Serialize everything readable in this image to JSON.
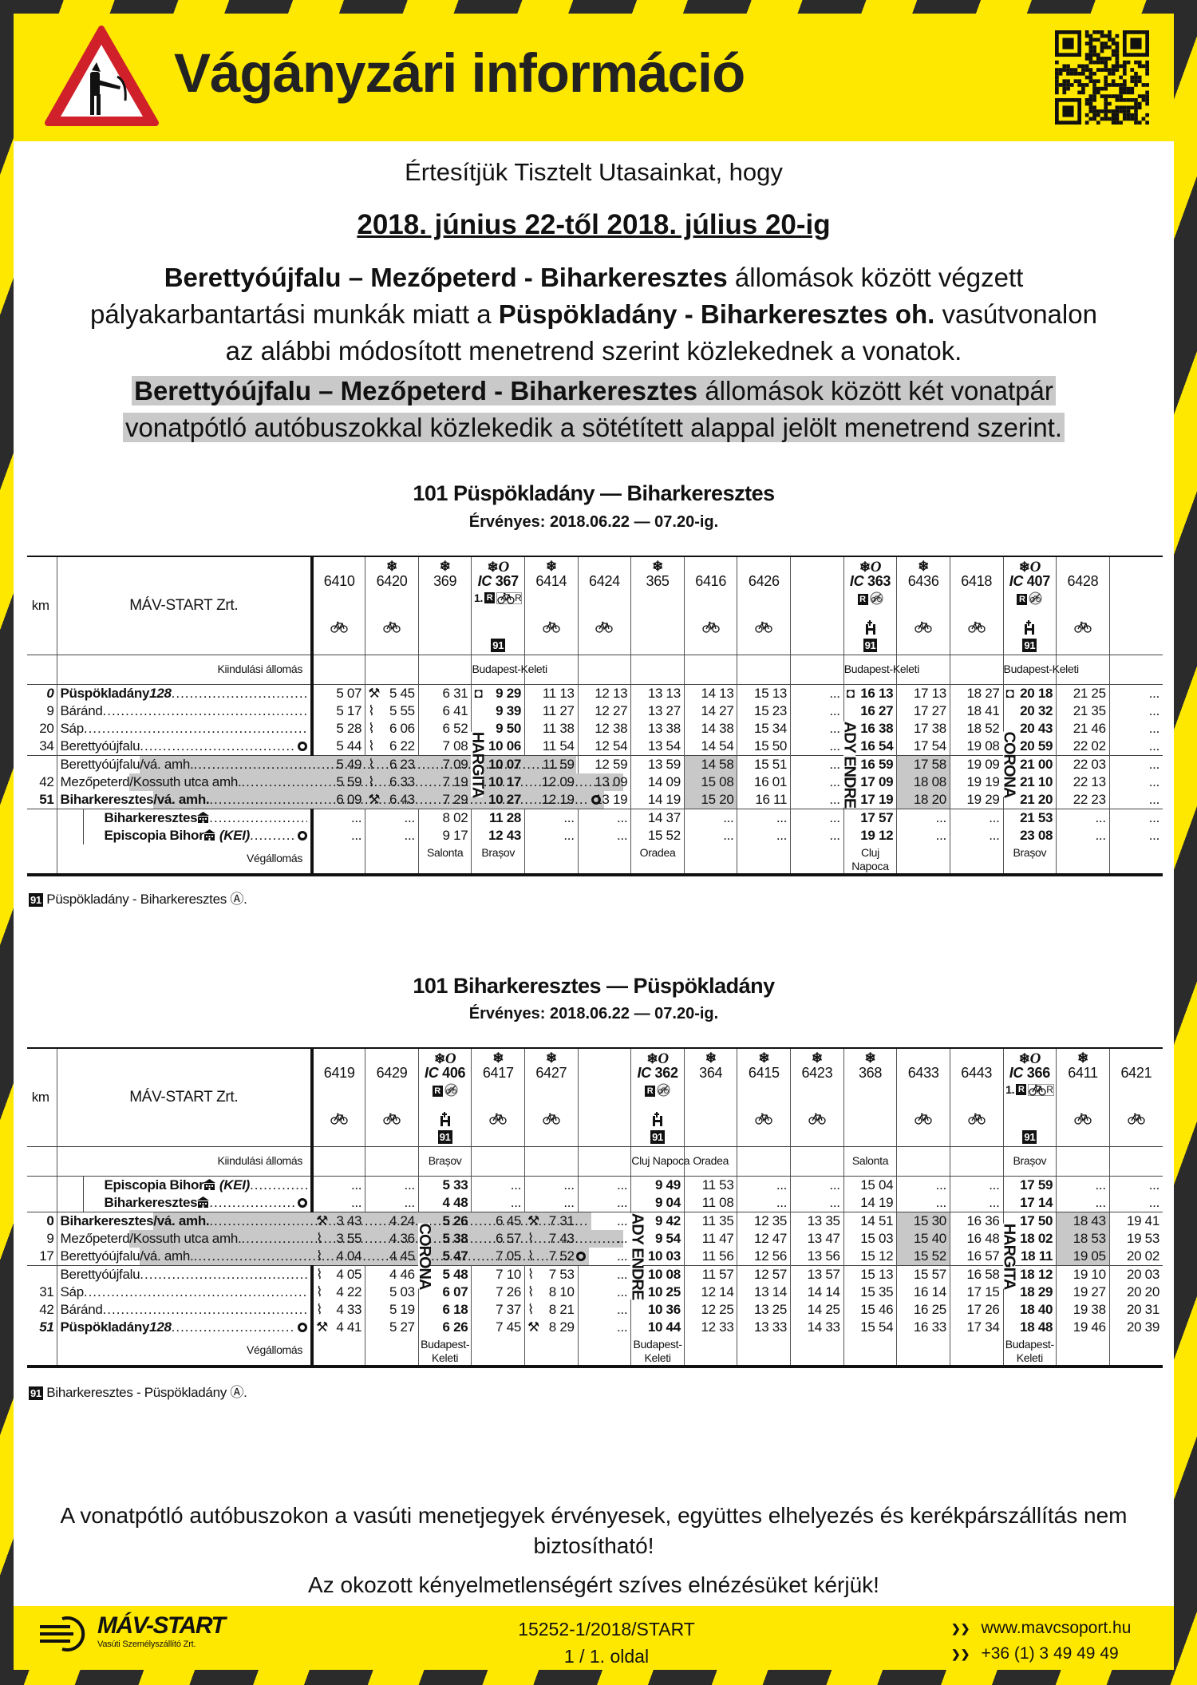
{
  "header": {
    "title": "Vágányzári információ",
    "qr_label": "QR code"
  },
  "notice": {
    "intro": "Értesítjük Tisztelt Utasainkat, hogy",
    "period": "2018. június 22-től 2018. július 20-ig",
    "p1_bold1": "Berettyóújfalu – Mezőpeterd - Biharkeresztes",
    "p1_text1": " állomások között végzett",
    "p1_text2": "pályakarbantartási munkák miatt a ",
    "p1_bold2": "Püspökladány - Biharkeresztes oh.",
    "p1_text3": " vasútvonalon",
    "p1_text4": "az alábbi módosított menetrend szerint közlekednek a vonatok.",
    "p2_bold": "Berettyóújfalu – Mezőpeterd - Biharkeresztes",
    "p2_text1": " állomások között két vonatpár",
    "p2_text2": "vonatpótló autóbuszokkal közlekedik a sötétített alappal jelölt menetrend szerint."
  },
  "colors": {
    "yellow": "#ffe800",
    "stripe_dark": "#2b2b2b",
    "shade": "#c8c8c8",
    "warning_red": "#d0202a"
  },
  "tables": [
    {
      "title": "101 Püspökladány — Biharkeresztes",
      "valid": "Érvényes: 2018.06.22 — 07.20-ig.",
      "km_label": "km",
      "operator": "MÁV-START Zrt.",
      "start_label": "Kiindulási állomás",
      "end_label": "Végállomás",
      "groups": [
        4,
        3,
        2
      ],
      "stations": [
        {
          "km": "0",
          "km_style": "bi",
          "name": "Püspökladány ",
          "suffix": "128",
          "bold": true
        },
        {
          "km": "9",
          "name": "Báránd"
        },
        {
          "km": "20",
          "name": "Sáp"
        },
        {
          "km": "34",
          "name": "Berettyóújfalu",
          "circle": true
        },
        {
          "km": "",
          "name": "Berettyóújfalu",
          "shaded": "/vá. amh."
        },
        {
          "km": "42",
          "name": "Mezőpeterd",
          "shaded": "/Kossuth utca amh."
        },
        {
          "km": "51",
          "km_style": "b",
          "name": "Biharkeresztes",
          "shaded": "/vá. amh.",
          "bold": true,
          "circle": true
        },
        {
          "km": "",
          "name": "Biharkeresztes ",
          "icon": "border-station",
          "bold": true,
          "indent": true
        },
        {
          "km": "",
          "name": "Episcopia Bihor ",
          "icon": "border-station",
          "tail": "(KEI)",
          "bold": true,
          "indent": true,
          "circle": true
        }
      ],
      "trains": [
        {
          "number": "6410",
          "bike": true,
          "times": [
            "5 07",
            "5 17",
            "5 28",
            "5 44",
            "5 49",
            "5 59",
            "6 09",
            "...",
            "..."
          ]
        },
        {
          "number": "6420",
          "snow": true,
          "bike": true,
          "times": [
            "5 45",
            "5 55",
            "6 06",
            "6 22",
            "6 23",
            "6 33",
            "6 43",
            "...",
            "..."
          ],
          "markers": {
            "0": "pickaxe",
            "1": "wavy",
            "2": "wavy",
            "3": "wavy",
            "4": "wavy",
            "5": "wavy",
            "6": "pickaxe"
          }
        },
        {
          "number": "369",
          "snow": true,
          "times": [
            "6 31",
            "6 41",
            "6 52",
            "7 08",
            "7 09",
            "7 19",
            "7 29",
            "8 02",
            "9 17"
          ],
          "to": "Salonta"
        },
        {
          "ic": true,
          "number": "367",
          "snow": true,
          "opt": true,
          "note": "1.",
          "r": true,
          "bikeR": true,
          "ref": "91",
          "from": "Budapest-Keleti",
          "to": "Brașov",
          "name": "HARGITA",
          "bold": true,
          "times": [
            "9 29",
            "9 39",
            "9 50",
            "10 06",
            "10 07",
            "10 17",
            "10 27",
            "11 28",
            "12 43"
          ],
          "markers": {
            "0": "square"
          }
        },
        {
          "number": "6414",
          "snow": true,
          "bike": true,
          "times": [
            "11 13",
            "11 27",
            "11 38",
            "11 54",
            "11 59",
            "12 09",
            "12 19",
            "...",
            "..."
          ]
        },
        {
          "number": "6424",
          "bike": true,
          "times": [
            "12 13",
            "12 27",
            "12 38",
            "12 54",
            "12 59",
            "13 09",
            "13 19",
            "...",
            "..."
          ]
        },
        {
          "number": "365",
          "snow": true,
          "times": [
            "13 13",
            "13 27",
            "13 38",
            "13 54",
            "13 59",
            "14 09",
            "14 19",
            "14 37",
            "15 52"
          ],
          "to": "Oradea"
        },
        {
          "number": "6416",
          "bike": true,
          "times": [
            "14 13",
            "14 27",
            "14 38",
            "14 54",
            "14 58",
            "15 08",
            "15 20",
            "...",
            "..."
          ],
          "shaded": [
            4,
            5,
            6
          ]
        },
        {
          "number": "6426",
          "bike": true,
          "times": [
            "15 13",
            "15 23",
            "15 34",
            "15 50",
            "15 51",
            "16 01",
            "16 11",
            "...",
            "..."
          ]
        },
        {
          "number": "",
          "times": [
            "...",
            "...",
            "...",
            "...",
            "...",
            "...",
            "...",
            "...",
            "..."
          ]
        },
        {
          "ic": true,
          "number": "363",
          "snow": true,
          "opt": true,
          "r": true,
          "nobike": true,
          "bistro": true,
          "ref": "91",
          "from": "Budapest-Keleti",
          "to": "Cluj Napoca",
          "name": "ADY ENDRE",
          "bold": true,
          "times": [
            "16 13",
            "16 27",
            "16 38",
            "16 54",
            "16 59",
            "17 09",
            "17 19",
            "17 57",
            "19 12"
          ],
          "markers": {
            "0": "square"
          }
        },
        {
          "number": "6436",
          "snow": true,
          "bike": true,
          "times": [
            "17 13",
            "17 27",
            "17 38",
            "17 54",
            "17 58",
            "18 08",
            "18 20",
            "...",
            "..."
          ],
          "shaded": [
            4,
            5,
            6
          ]
        },
        {
          "number": "6418",
          "bike": true,
          "times": [
            "18 27",
            "18 41",
            "18 52",
            "19 08",
            "19 09",
            "19 19",
            "19 29",
            "...",
            "..."
          ]
        },
        {
          "ic": true,
          "number": "407",
          "snow": true,
          "opt": true,
          "r": true,
          "nobike": true,
          "bistro": true,
          "ref": "91",
          "from": "Budapest-Keleti",
          "to": "Brașov",
          "name": "CORONA",
          "bold": true,
          "times": [
            "20 18",
            "20 32",
            "20 43",
            "20 59",
            "21 00",
            "21 10",
            "21 20",
            "21 53",
            "23 08"
          ],
          "markers": {
            "0": "square"
          }
        },
        {
          "number": "6428",
          "bike": true,
          "times": [
            "21 25",
            "21 35",
            "21 46",
            "22 02",
            "22 03",
            "22 13",
            "22 23",
            "...",
            "..."
          ]
        },
        {
          "number": "",
          "times": [
            "...",
            "...",
            "...",
            "...",
            "...",
            "...",
            "...",
            "...",
            "..."
          ]
        }
      ],
      "footnote": {
        "ref": "91",
        "text": " Püspökladány - Biharkeresztes ",
        "symbol": "Ⓐ."
      }
    },
    {
      "title": "101 Biharkeresztes — Püspökladány",
      "valid": "Érvényes: 2018.06.22 — 07.20-ig.",
      "km_label": "km",
      "operator": "MÁV-START Zrt.",
      "start_label": "Kiindulási állomás",
      "end_label": "Végállomás",
      "groups": [
        2,
        3,
        4
      ],
      "stations": [
        {
          "km": "",
          "name": "Episcopia Bihor ",
          "icon": "border-station",
          "tail": "(KEI)",
          "bold": true,
          "indent": true
        },
        {
          "km": "",
          "name": "Biharkeresztes ",
          "icon": "border-station",
          "bold": true,
          "indent": true,
          "circle": true
        },
        {
          "km": "0",
          "km_style": "b",
          "name": "Biharkeresztes",
          "shaded": "/vá. amh.",
          "bold": true
        },
        {
          "km": "9",
          "name": "Mezőpeterd",
          "shaded": "/Kossuth utca amh."
        },
        {
          "km": "17",
          "name": "Berettyóújfalu",
          "shaded": "/vá. amh.",
          "circle": true
        },
        {
          "km": "",
          "name": "Berettyóújfalu"
        },
        {
          "km": "31",
          "name": "Sáp"
        },
        {
          "km": "42",
          "name": "Báránd"
        },
        {
          "km": "51",
          "km_style": "bi",
          "name": "Püspökladány ",
          "suffix": "128",
          "bold": true,
          "circle": true
        }
      ],
      "trains": [
        {
          "number": "6419",
          "bike": true,
          "times": [
            "...",
            "...",
            "3 43",
            "3 55",
            "4 04",
            "4 05",
            "4 22",
            "4 33",
            "4 41"
          ],
          "markers": {
            "2": "pickaxe",
            "3": "wavy",
            "4": "wavy",
            "5": "wavy",
            "6": "wavy",
            "7": "wavy",
            "8": "pickaxe"
          }
        },
        {
          "number": "6429",
          "bike": true,
          "times": [
            "...",
            "...",
            "4 24",
            "4 36",
            "4 45",
            "4 46",
            "5 03",
            "5 19",
            "5 27"
          ]
        },
        {
          "ic": true,
          "number": "406",
          "snow": true,
          "opt": true,
          "r": true,
          "nobike": true,
          "bistro": true,
          "ref": "91",
          "from": "Brașov",
          "to": "Budapest-Keleti",
          "name": "CORONA",
          "bold": true,
          "times": [
            "5 33",
            "4 48",
            "5 26",
            "5 38",
            "5 47",
            "5 48",
            "6 07",
            "6 18",
            "6 26"
          ]
        },
        {
          "number": "6417",
          "snow": true,
          "bike": true,
          "times": [
            "...",
            "...",
            "6 45",
            "6 57",
            "7 05",
            "7 10",
            "7 26",
            "7 37",
            "7 45"
          ]
        },
        {
          "number": "6427",
          "snow": true,
          "bike": true,
          "times": [
            "...",
            "...",
            "7 31",
            "7 43",
            "7 52",
            "7 53",
            "8 10",
            "8 21",
            "8 29"
          ],
          "markers": {
            "2": "pickaxe",
            "3": "wavy",
            "4": "wavy",
            "5": "wavy",
            "6": "wavy",
            "7": "wavy",
            "8": "pickaxe"
          }
        },
        {
          "number": "",
          "times": [
            "...",
            "...",
            "...",
            "...",
            "...",
            "...",
            "...",
            "...",
            "..."
          ]
        },
        {
          "ic": true,
          "number": "362",
          "snow": true,
          "opt": true,
          "r": true,
          "nobike": true,
          "bistro": true,
          "ref": "91",
          "from": "Cluj Napoca",
          "to": "Budapest-Keleti",
          "name": "ADY ENDRE",
          "bold": true,
          "times": [
            "9 49",
            "9 04",
            "9 42",
            "9 54",
            "10 03",
            "10 08",
            "10 25",
            "10 36",
            "10 44"
          ]
        },
        {
          "number": "364",
          "snow": true,
          "from": "Oradea",
          "times": [
            "11 53",
            "11 08",
            "11 35",
            "11 47",
            "11 56",
            "11 57",
            "12 14",
            "12 25",
            "12 33"
          ]
        },
        {
          "number": "6415",
          "snow": true,
          "bike": true,
          "times": [
            "...",
            "...",
            "12 35",
            "12 47",
            "12 56",
            "12 57",
            "13 14",
            "13 25",
            "13 33"
          ]
        },
        {
          "number": "6423",
          "snow": true,
          "bike": true,
          "times": [
            "...",
            "...",
            "13 35",
            "13 47",
            "13 56",
            "13 57",
            "14 14",
            "14 25",
            "14 33"
          ]
        },
        {
          "number": "368",
          "snow": true,
          "from": "Salonta",
          "times": [
            "15 04",
            "14 19",
            "14 51",
            "15 03",
            "15 12",
            "15 13",
            "15 35",
            "15 46",
            "15 54"
          ]
        },
        {
          "number": "6433",
          "bike": true,
          "times": [
            "...",
            "...",
            "15 30",
            "15 40",
            "15 52",
            "15 57",
            "16 14",
            "16 25",
            "16 33"
          ],
          "shaded": [
            2,
            3,
            4
          ]
        },
        {
          "number": "6443",
          "bike": true,
          "times": [
            "...",
            "...",
            "16 36",
            "16 48",
            "16 57",
            "16 58",
            "17 15",
            "17 26",
            "17 34"
          ]
        },
        {
          "ic": true,
          "number": "366",
          "snow": true,
          "opt": true,
          "note": "1.",
          "r": true,
          "bikeR": true,
          "ref": "91",
          "from": "Brașov",
          "to": "Budapest-Keleti",
          "name": "HARGITA",
          "bold": true,
          "times": [
            "17 59",
            "17 14",
            "17 50",
            "18 02",
            "18 11",
            "18 12",
            "18 29",
            "18 40",
            "18 48"
          ]
        },
        {
          "number": "6411",
          "snow": true,
          "bike": true,
          "times": [
            "...",
            "...",
            "18 43",
            "18 53",
            "19 05",
            "19 10",
            "19 27",
            "19 38",
            "19 46"
          ],
          "shaded": [
            2,
            3,
            4
          ]
        },
        {
          "number": "6421",
          "bike": true,
          "times": [
            "...",
            "...",
            "19 41",
            "19 53",
            "20 02",
            "20 03",
            "20 20",
            "20 31",
            "20 39"
          ]
        }
      ],
      "footnote": {
        "ref": "91",
        "text": " Biharkeresztes - Püspökladány ",
        "symbol": "Ⓐ."
      }
    }
  ],
  "closing": {
    "line1": "A vonatpótló autóbuszokon a vasúti menetjegyek érvényesek, együttes elhelyezés és kerékpárszállítás nem",
    "line2": "biztosítható!",
    "apology": "Az okozott kényelmetlenségért szíves elnézésüket kérjük!"
  },
  "footer": {
    "logo_name": "MÁV-START",
    "logo_sub": "Vasúti Személyszállító Zrt.",
    "doc_number": "15252-1/2018/START",
    "page": "1 / 1. oldal",
    "website": "www.mavcsoport.hu",
    "phone": "+36 (1) 3 49 49 49"
  }
}
